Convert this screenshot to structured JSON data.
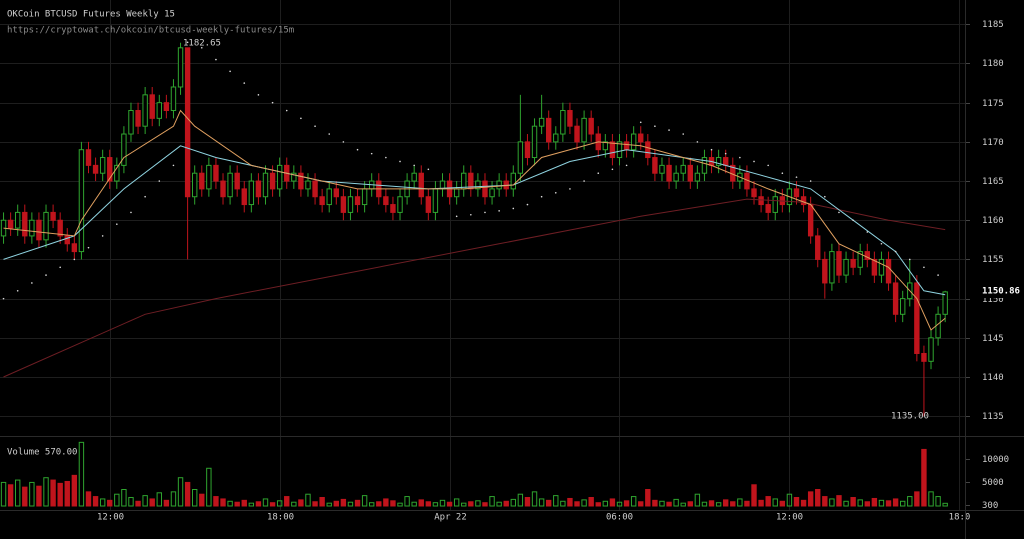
{
  "chart_data": {
    "type": "candlestick",
    "title": "OKCoin BTCUSD Futures Weekly 15",
    "subtitle": "https://cryptowat.ch/okcoin/btcusd-weekly-futures/15m",
    "volume_title": "Volume 570.00",
    "last_price_label": "1150.86",
    "annotations": [
      "1182.65",
      "1135.00"
    ],
    "up_color": "#2fa52f",
    "down_color": "#c0141c",
    "grid": true,
    "xlim": [
      -0.5,
      135.8
    ],
    "xticks": [
      {
        "value": 15,
        "label": "12:00"
      },
      {
        "value": 39,
        "label": "18:00"
      },
      {
        "value": 63,
        "label": "Apr 22"
      },
      {
        "value": 87,
        "label": "06:00"
      },
      {
        "value": 111,
        "label": "12:00"
      },
      {
        "value": 135,
        "label": "18:0"
      }
    ],
    "ylim": [
      1132.6,
      1188.1
    ],
    "yticks": [
      1135,
      1140,
      1145,
      1150,
      1155,
      1160,
      1165,
      1170,
      1175,
      1180,
      1185
    ],
    "volume_ylim": [
      0,
      14000
    ],
    "volume_yticks": [
      300,
      5000,
      10000
    ],
    "open": [
      1158,
      1160,
      1159,
      1161,
      1158,
      1160,
      1157.5,
      1161,
      1160,
      1158,
      1157,
      1156,
      1169,
      1167,
      1166,
      1168,
      1165,
      1167,
      1171,
      1174,
      1172,
      1176,
      1173,
      1175,
      1174,
      1177,
      1182,
      1163,
      1166,
      1164,
      1167,
      1165,
      1163,
      1166,
      1164,
      1162,
      1165,
      1163,
      1166,
      1164,
      1167,
      1165,
      1166,
      1164,
      1165,
      1163,
      1162,
      1164,
      1163,
      1161,
      1163,
      1162,
      1164,
      1165,
      1163,
      1162,
      1161,
      1163,
      1165,
      1166,
      1163,
      1161,
      1164,
      1165,
      1163,
      1164,
      1166,
      1164,
      1165,
      1163,
      1164,
      1165,
      1164,
      1166,
      1170,
      1168,
      1172,
      1173,
      1170,
      1171,
      1174,
      1172,
      1170,
      1173,
      1171,
      1169,
      1170,
      1168,
      1170,
      1169,
      1171,
      1170,
      1168,
      1166,
      1167,
      1165,
      1166,
      1167,
      1165,
      1166,
      1168,
      1167,
      1168,
      1167,
      1165,
      1166,
      1164,
      1163,
      1162,
      1161,
      1163,
      1162,
      1164,
      1163,
      1162,
      1158,
      1155,
      1152,
      1156,
      1153,
      1155,
      1154,
      1156,
      1155,
      1153,
      1155,
      1152,
      1148,
      1150,
      1152,
      1143,
      1142,
      1145,
      1148
    ],
    "high": [
      1161,
      1161,
      1162,
      1162,
      1161,
      1161,
      1162,
      1162,
      1161,
      1159,
      1158,
      1170,
      1170,
      1168,
      1169,
      1169,
      1168,
      1172,
      1175,
      1175,
      1177,
      1177,
      1176,
      1176,
      1178,
      1182.65,
      1182,
      1167,
      1167,
      1168,
      1168,
      1166,
      1167,
      1167,
      1165,
      1166,
      1166,
      1167,
      1167,
      1168,
      1168,
      1167,
      1167,
      1166,
      1166,
      1164,
      1165,
      1165,
      1164,
      1164,
      1164,
      1165,
      1166,
      1166,
      1164,
      1163,
      1164,
      1166,
      1167,
      1167,
      1164,
      1165,
      1166,
      1166,
      1165,
      1167,
      1167,
      1166,
      1166,
      1165,
      1166,
      1166,
      1167,
      1176,
      1171,
      1173,
      1176,
      1174,
      1172,
      1175,
      1175,
      1173,
      1174,
      1174,
      1172,
      1171,
      1171,
      1171,
      1171,
      1172,
      1172,
      1171,
      1169,
      1168,
      1168,
      1167,
      1168,
      1168,
      1167,
      1169,
      1169,
      1169,
      1169,
      1168,
      1167,
      1167,
      1165,
      1164,
      1163,
      1164,
      1164,
      1165,
      1165,
      1164,
      1163,
      1159,
      1156,
      1157,
      1157,
      1156,
      1156,
      1157,
      1157,
      1156,
      1156,
      1156,
      1153,
      1151,
      1155,
      1153,
      1144,
      1146,
      1149,
      1151
    ],
    "low": [
      1157,
      1158,
      1158,
      1157,
      1157,
      1156.5,
      1156.5,
      1159,
      1157,
      1156,
      1155,
      1155,
      1166,
      1165,
      1165,
      1164,
      1164,
      1166,
      1170,
      1171,
      1171,
      1172,
      1172,
      1173,
      1173,
      1176,
      1155,
      1162,
      1163,
      1163,
      1164,
      1162,
      1162,
      1163,
      1161,
      1161,
      1162,
      1162,
      1163,
      1163,
      1164,
      1164,
      1163,
      1163,
      1162,
      1161,
      1161,
      1162,
      1160,
      1160,
      1161,
      1161,
      1163,
      1162,
      1161,
      1160,
      1160,
      1162,
      1164,
      1162,
      1160,
      1160,
      1163,
      1162,
      1162,
      1163,
      1163,
      1163,
      1162,
      1162,
      1163,
      1163,
      1163,
      1165,
      1167,
      1167,
      1171,
      1169,
      1169,
      1170,
      1171,
      1169,
      1169,
      1170,
      1168,
      1168,
      1167,
      1167,
      1168,
      1168,
      1169,
      1167,
      1165,
      1165,
      1164,
      1164,
      1165,
      1164,
      1164,
      1165,
      1166,
      1166,
      1166,
      1164,
      1164,
      1163,
      1162,
      1161,
      1160,
      1160,
      1161,
      1161,
      1162,
      1161,
      1157,
      1154,
      1150,
      1151,
      1152,
      1152,
      1153,
      1153,
      1154,
      1152,
      1152,
      1151,
      1147,
      1147,
      1149,
      1142,
      1135,
      1141,
      1144,
      1147
    ],
    "close": [
      1160,
      1159,
      1161,
      1158,
      1160,
      1157.5,
      1161,
      1160,
      1158,
      1157,
      1156,
      1169,
      1167,
      1166,
      1168,
      1165,
      1167,
      1171,
      1174,
      1172,
      1176,
      1173,
      1175,
      1174,
      1177,
      1182,
      1163,
      1166,
      1164,
      1167,
      1165,
      1163,
      1166,
      1164,
      1162,
      1165,
      1163,
      1166,
      1164,
      1167,
      1165,
      1166,
      1164,
      1165,
      1163,
      1162,
      1164,
      1163,
      1161,
      1163,
      1162,
      1164,
      1165,
      1163,
      1162,
      1161,
      1163,
      1165,
      1166,
      1163,
      1161,
      1164,
      1165,
      1163,
      1164,
      1166,
      1164,
      1165,
      1163,
      1164,
      1165,
      1164,
      1166,
      1170,
      1168,
      1172,
      1173,
      1170,
      1171,
      1174,
      1172,
      1170,
      1173,
      1171,
      1169,
      1170,
      1168,
      1170,
      1169,
      1171,
      1170,
      1168,
      1166,
      1167,
      1165,
      1166,
      1167,
      1165,
      1166,
      1168,
      1167,
      1168,
      1167,
      1165,
      1166,
      1164,
      1163,
      1162,
      1161,
      1163,
      1162,
      1164,
      1163,
      1162,
      1158,
      1155,
      1152,
      1156,
      1153,
      1155,
      1154,
      1156,
      1155,
      1153,
      1155,
      1152,
      1148,
      1150,
      1152,
      1143,
      1142,
      1145,
      1148,
      1150.86
    ],
    "volume": [
      5000,
      4500,
      5500,
      4000,
      5000,
      4200,
      6000,
      5500,
      4800,
      5200,
      6500,
      13500,
      3000,
      2000,
      1500,
      1200,
      2500,
      3500,
      1800,
      1000,
      2200,
      1500,
      2800,
      1200,
      3000,
      6000,
      5000,
      3500,
      2500,
      8000,
      2000,
      1500,
      1000,
      800,
      1200,
      600,
      900,
      1500,
      700,
      1100,
      2000,
      800,
      1300,
      2500,
      900,
      1800,
      600,
      1000,
      1400,
      800,
      1200,
      2200,
      700,
      900,
      1500,
      1100,
      600,
      2000,
      800,
      1300,
      900,
      700,
      1200,
      800,
      1500,
      600,
      900,
      1100,
      700,
      2000,
      800,
      1000,
      1400,
      2500,
      1800,
      3000,
      1500,
      1200,
      2200,
      1000,
      1600,
      900,
      1300,
      1800,
      700,
      1000,
      1500,
      800,
      1100,
      2000,
      900,
      3500,
      1200,
      1000,
      800,
      1400,
      600,
      900,
      2500,
      800,
      1100,
      700,
      1300,
      900,
      1500,
      1000,
      4500,
      1200,
      2000,
      1500,
      1000,
      2500,
      1800,
      1200,
      3000,
      3500,
      2000,
      1500,
      2200,
      1000,
      1800,
      1300,
      900,
      1600,
      1200,
      1100,
      1500,
      1000,
      2000,
      3000,
      12000,
      3000,
      2000,
      570
    ],
    "overlays": [
      {
        "style": "line",
        "color": "#6e1e24",
        "x": [
          0,
          20,
          30,
          50,
          70,
          90,
          105,
          113,
          125,
          133
        ],
        "values": [
          1140,
          1148,
          1150,
          1153.5,
          1157,
          1160.5,
          1162.7,
          1162.3,
          1160,
          1158.8
        ]
      },
      {
        "style": "line",
        "color": "#8fd3e0",
        "x": [
          0,
          10,
          17,
          25,
          30,
          45,
          60,
          72,
          80,
          88,
          100,
          110,
          114,
          120,
          126,
          130,
          133
        ],
        "values": [
          1155,
          1158,
          1164,
          1169.5,
          1168,
          1165,
          1164,
          1164.5,
          1167.5,
          1169,
          1167.5,
          1165,
          1164,
          1160,
          1156,
          1151,
          1150.5
        ]
      },
      {
        "style": "line",
        "color": "#e0a060",
        "x": [
          0,
          10,
          11,
          17,
          24,
          25,
          27,
          35,
          50,
          65,
          72,
          76,
          84,
          90,
          100,
          108,
          114,
          118,
          125,
          129,
          131,
          133
        ],
        "values": [
          1159,
          1158,
          1160,
          1168,
          1172,
          1174,
          1172,
          1167,
          1164,
          1164,
          1164.5,
          1168,
          1170,
          1169.5,
          1167,
          1164,
          1162,
          1157,
          1154,
          1150,
          1146,
          1147.5
        ]
      },
      {
        "style": "dots",
        "color": "#dddddd",
        "x": [
          0,
          2,
          4,
          6,
          8,
          10,
          12,
          14,
          16,
          18,
          20,
          22,
          24,
          26,
          28,
          30,
          32,
          34,
          36,
          38,
          40,
          42,
          44,
          46,
          48,
          50,
          52,
          54,
          56,
          58,
          60,
          64,
          66,
          68,
          70,
          72,
          74,
          76,
          78,
          80,
          82,
          84,
          86,
          88,
          90,
          92,
          94,
          96,
          98,
          100,
          102,
          104,
          106,
          108,
          110,
          112,
          114,
          116,
          118,
          120,
          122,
          124,
          126,
          128,
          130,
          132
        ],
        "values": [
          1150,
          1151,
          1152,
          1153,
          1154,
          1155,
          1156.5,
          1158,
          1159.5,
          1161,
          1163,
          1165,
          1167,
          1182.7,
          1182,
          1180.5,
          1179,
          1177.5,
          1176,
          1175,
          1174,
          1173,
          1172,
          1171,
          1170,
          1169,
          1168.5,
          1168,
          1167.5,
          1167,
          1166.5,
          1160.5,
          1160.7,
          1161,
          1161.2,
          1161.5,
          1162,
          1163,
          1163.5,
          1164,
          1165,
          1166,
          1166.5,
          1167,
          1172.5,
          1172,
          1171.5,
          1171,
          1170,
          1169,
          1168.5,
          1168,
          1167.5,
          1167,
          1166,
          1165.5,
          1165,
          1163,
          1161,
          1160,
          1158.5,
          1157,
          1156,
          1155,
          1154,
          1153
        ]
      }
    ]
  }
}
